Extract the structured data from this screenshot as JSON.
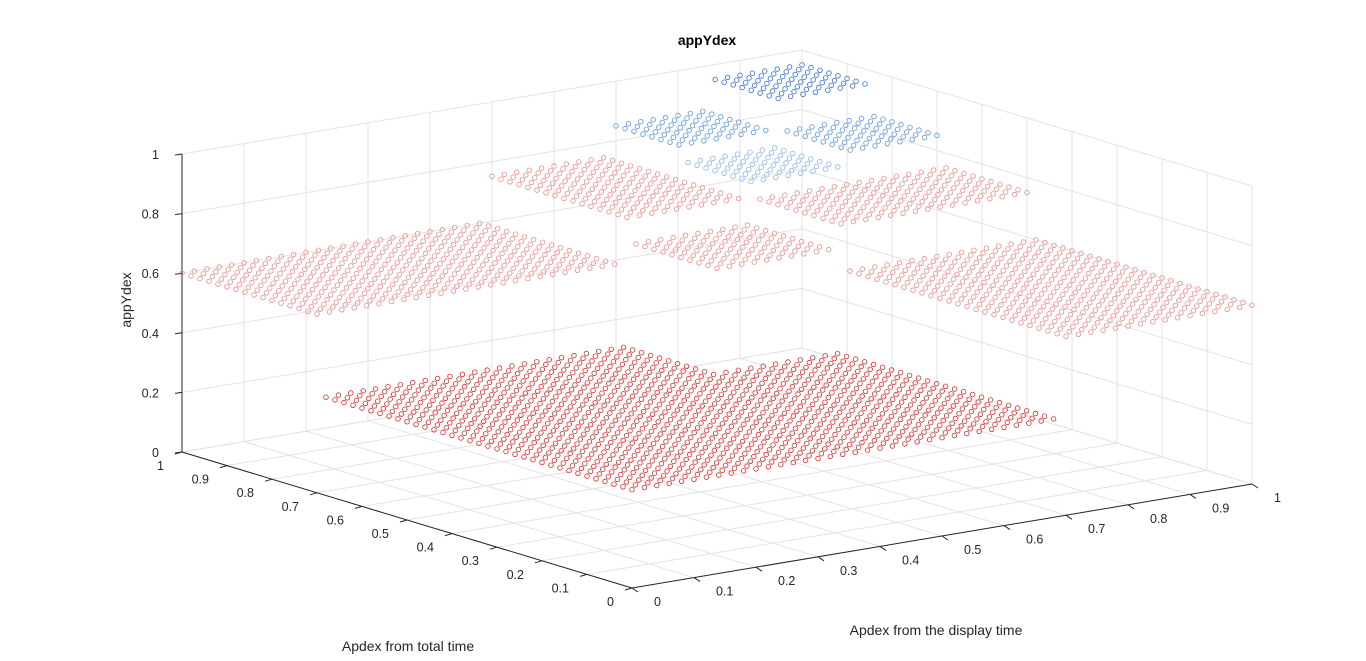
{
  "chart_data": {
    "type": "scatter",
    "title": "appYdex",
    "xlabel": "Apdex from the display time",
    "ylabel": "Apdex from total time",
    "zlabel": "appYdex",
    "xlim": [
      0,
      1
    ],
    "ylim": [
      0,
      1
    ],
    "zlim": [
      0,
      1
    ],
    "x_ticks": [
      "0",
      "0.1",
      "0.2",
      "0.3",
      "0.4",
      "0.5",
      "0.6",
      "0.7",
      "0.8",
      "0.9",
      "1"
    ],
    "y_ticks": [
      "0",
      "0.1",
      "0.2",
      "0.3",
      "0.4",
      "0.5",
      "0.6",
      "0.7",
      "0.8",
      "0.9",
      "1"
    ],
    "z_ticks": [
      "0",
      "0.2",
      "0.4",
      "0.6",
      "0.8",
      "1"
    ],
    "grid": true,
    "marker": "circle",
    "description_of_function": "piecewise-constant appYdex over a 0..1 grid of display-time and total-time Apdex",
    "zones": [
      {
        "xmin": 0.0,
        "xmax": 0.5,
        "ymin": 0.0,
        "ymax": 0.5,
        "z": 0.33,
        "color": "#d62a2a"
      },
      {
        "xmin": 0.0,
        "xmax": 0.5,
        "ymin": 0.5,
        "ymax": 0.7,
        "z": 0.33,
        "color": "#d62a2a"
      },
      {
        "xmin": 0.5,
        "xmax": 0.7,
        "ymin": 0.0,
        "ymax": 0.5,
        "z": 0.33,
        "color": "#d62a2a"
      },
      {
        "xmin": 0.0,
        "xmax": 0.5,
        "ymin": 0.7,
        "ymax": 1.0,
        "z": 0.6,
        "color": "#ec8a86"
      },
      {
        "xmin": 0.7,
        "xmax": 1.0,
        "ymin": 0.0,
        "ymax": 0.5,
        "z": 0.6,
        "color": "#ec8a86"
      },
      {
        "xmin": 0.5,
        "xmax": 0.7,
        "ymin": 0.5,
        "ymax": 0.7,
        "z": 0.67,
        "color": "#ec8a86"
      },
      {
        "xmin": 0.5,
        "xmax": 0.7,
        "ymin": 0.7,
        "ymax": 1.0,
        "z": 0.75,
        "color": "#ec8a86"
      },
      {
        "xmin": 0.7,
        "xmax": 1.0,
        "ymin": 0.5,
        "ymax": 0.7,
        "z": 0.75,
        "color": "#ec8a86"
      },
      {
        "xmin": 0.7,
        "xmax": 0.85,
        "ymin": 0.7,
        "ymax": 0.85,
        "z": 0.8,
        "color": "#8ab4ec"
      },
      {
        "xmin": 0.7,
        "xmax": 0.85,
        "ymin": 0.85,
        "ymax": 1.0,
        "z": 0.85,
        "color": "#5b94e2"
      },
      {
        "xmin": 0.85,
        "xmax": 1.0,
        "ymin": 0.7,
        "ymax": 0.85,
        "z": 0.85,
        "color": "#5b94e2"
      },
      {
        "xmin": 0.85,
        "xmax": 1.0,
        "ymin": 0.85,
        "ymax": 1.0,
        "z": 0.95,
        "color": "#2e6fd6"
      }
    ],
    "grid_step": 0.02
  }
}
